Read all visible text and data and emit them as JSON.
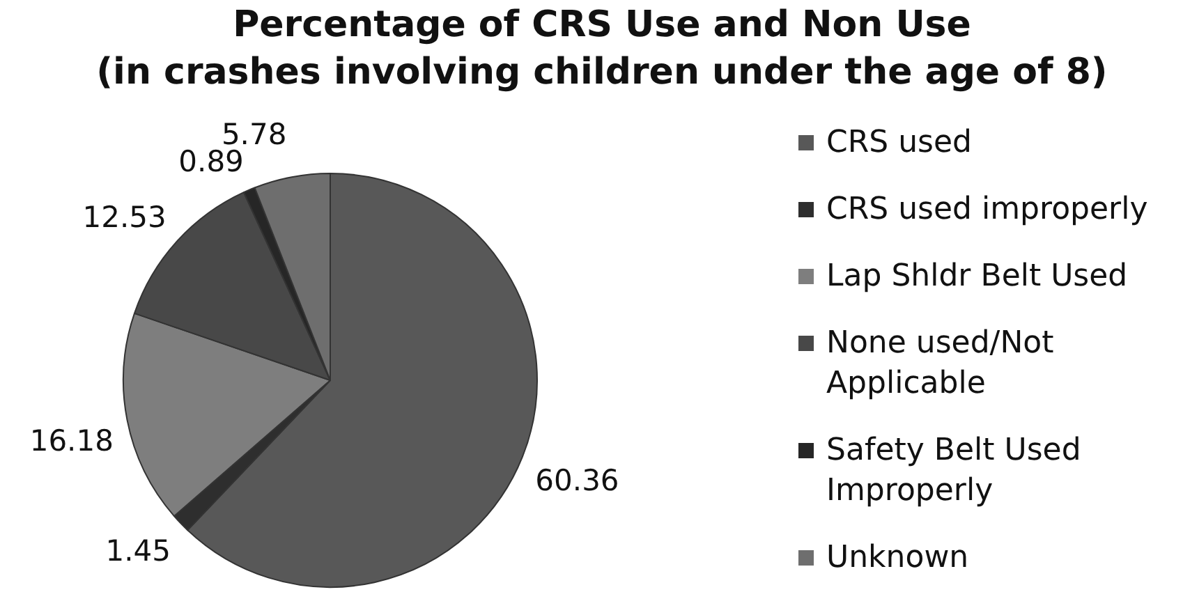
{
  "chart_data": {
    "type": "pie",
    "title": "Percentage of CRS Use and Non Use",
    "subtitle": "(in crashes involving children under the age of 8)",
    "categories": [
      "CRS used",
      "CRS used improperly",
      "Lap Shldr Belt Used",
      "None used/Not Applicable",
      "Safety Belt Used Improperly",
      "Unknown"
    ],
    "values": [
      60.36,
      1.45,
      16.18,
      12.53,
      0.89,
      5.78
    ],
    "colors": [
      "#585858",
      "#2e2e2e",
      "#7e7e7e",
      "#484848",
      "#262626",
      "#6e6e6e"
    ],
    "data_labels": true,
    "legend": "right"
  }
}
